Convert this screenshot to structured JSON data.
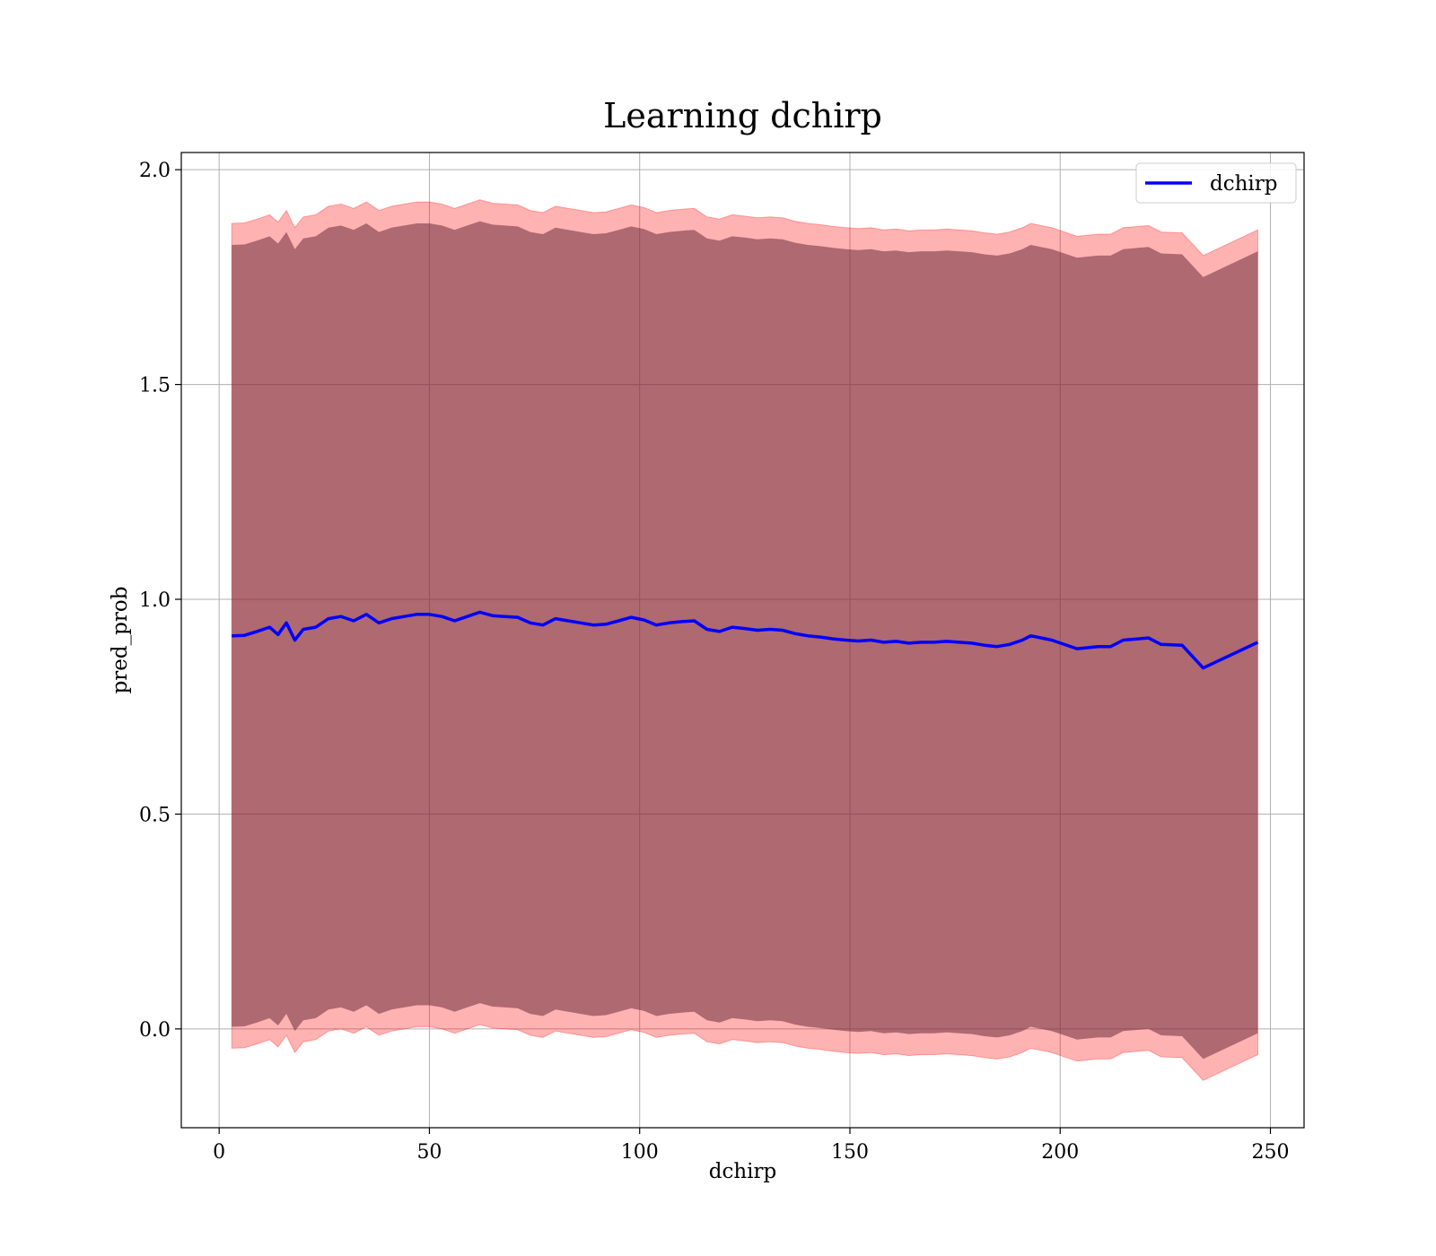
{
  "chart_data": {
    "type": "line",
    "title": "Learning dchirp",
    "xlabel": "dchirp",
    "ylabel": "pred_prob",
    "xlim": [
      -9,
      258
    ],
    "ylim": [
      -0.23,
      2.04
    ],
    "xticks": [
      0,
      50,
      100,
      150,
      200,
      250
    ],
    "xtick_labels": [
      "0",
      "50",
      "100",
      "150",
      "200",
      "250"
    ],
    "yticks": [
      0.0,
      0.5,
      1.0,
      1.5,
      2.0
    ],
    "ytick_labels": [
      "0.0",
      "0.5",
      "1.0",
      "1.5",
      "2.0"
    ],
    "grid": true,
    "legend_position": "top-right",
    "series": [
      {
        "name": "dchirp",
        "color": "#0000ff",
        "x": [
          3,
          6,
          9,
          12,
          14,
          16,
          18,
          20,
          23,
          26,
          29,
          32,
          35,
          38,
          41,
          44,
          47,
          50,
          53,
          56,
          59,
          62,
          65,
          68,
          71,
          74,
          77,
          80,
          83,
          86,
          89,
          92,
          95,
          98,
          101,
          104,
          107,
          110,
          113,
          116,
          119,
          122,
          125,
          128,
          131,
          134,
          137,
          140,
          143,
          146,
          149,
          152,
          155,
          158,
          161,
          164,
          167,
          170,
          173,
          176,
          179,
          182,
          185,
          188,
          191,
          193,
          198,
          204,
          209,
          212,
          215,
          221,
          224,
          229,
          234,
          247
        ],
        "y": [
          0.915,
          0.916,
          0.925,
          0.935,
          0.918,
          0.945,
          0.905,
          0.93,
          0.935,
          0.955,
          0.96,
          0.95,
          0.965,
          0.945,
          0.955,
          0.96,
          0.965,
          0.965,
          0.96,
          0.95,
          0.96,
          0.97,
          0.962,
          0.96,
          0.958,
          0.945,
          0.94,
          0.955,
          0.95,
          0.945,
          0.94,
          0.942,
          0.95,
          0.958,
          0.952,
          0.94,
          0.945,
          0.948,
          0.95,
          0.93,
          0.925,
          0.935,
          0.932,
          0.928,
          0.93,
          0.928,
          0.92,
          0.915,
          0.912,
          0.908,
          0.905,
          0.903,
          0.905,
          0.9,
          0.902,
          0.898,
          0.9,
          0.9,
          0.902,
          0.9,
          0.898,
          0.893,
          0.89,
          0.895,
          0.905,
          0.915,
          0.905,
          0.885,
          0.89,
          0.89,
          0.905,
          0.91,
          0.895,
          0.893,
          0.84,
          0.9
        ],
        "band_inner_halfwidth": 0.91,
        "band_outer_halfwidth": 0.96
      }
    ]
  }
}
